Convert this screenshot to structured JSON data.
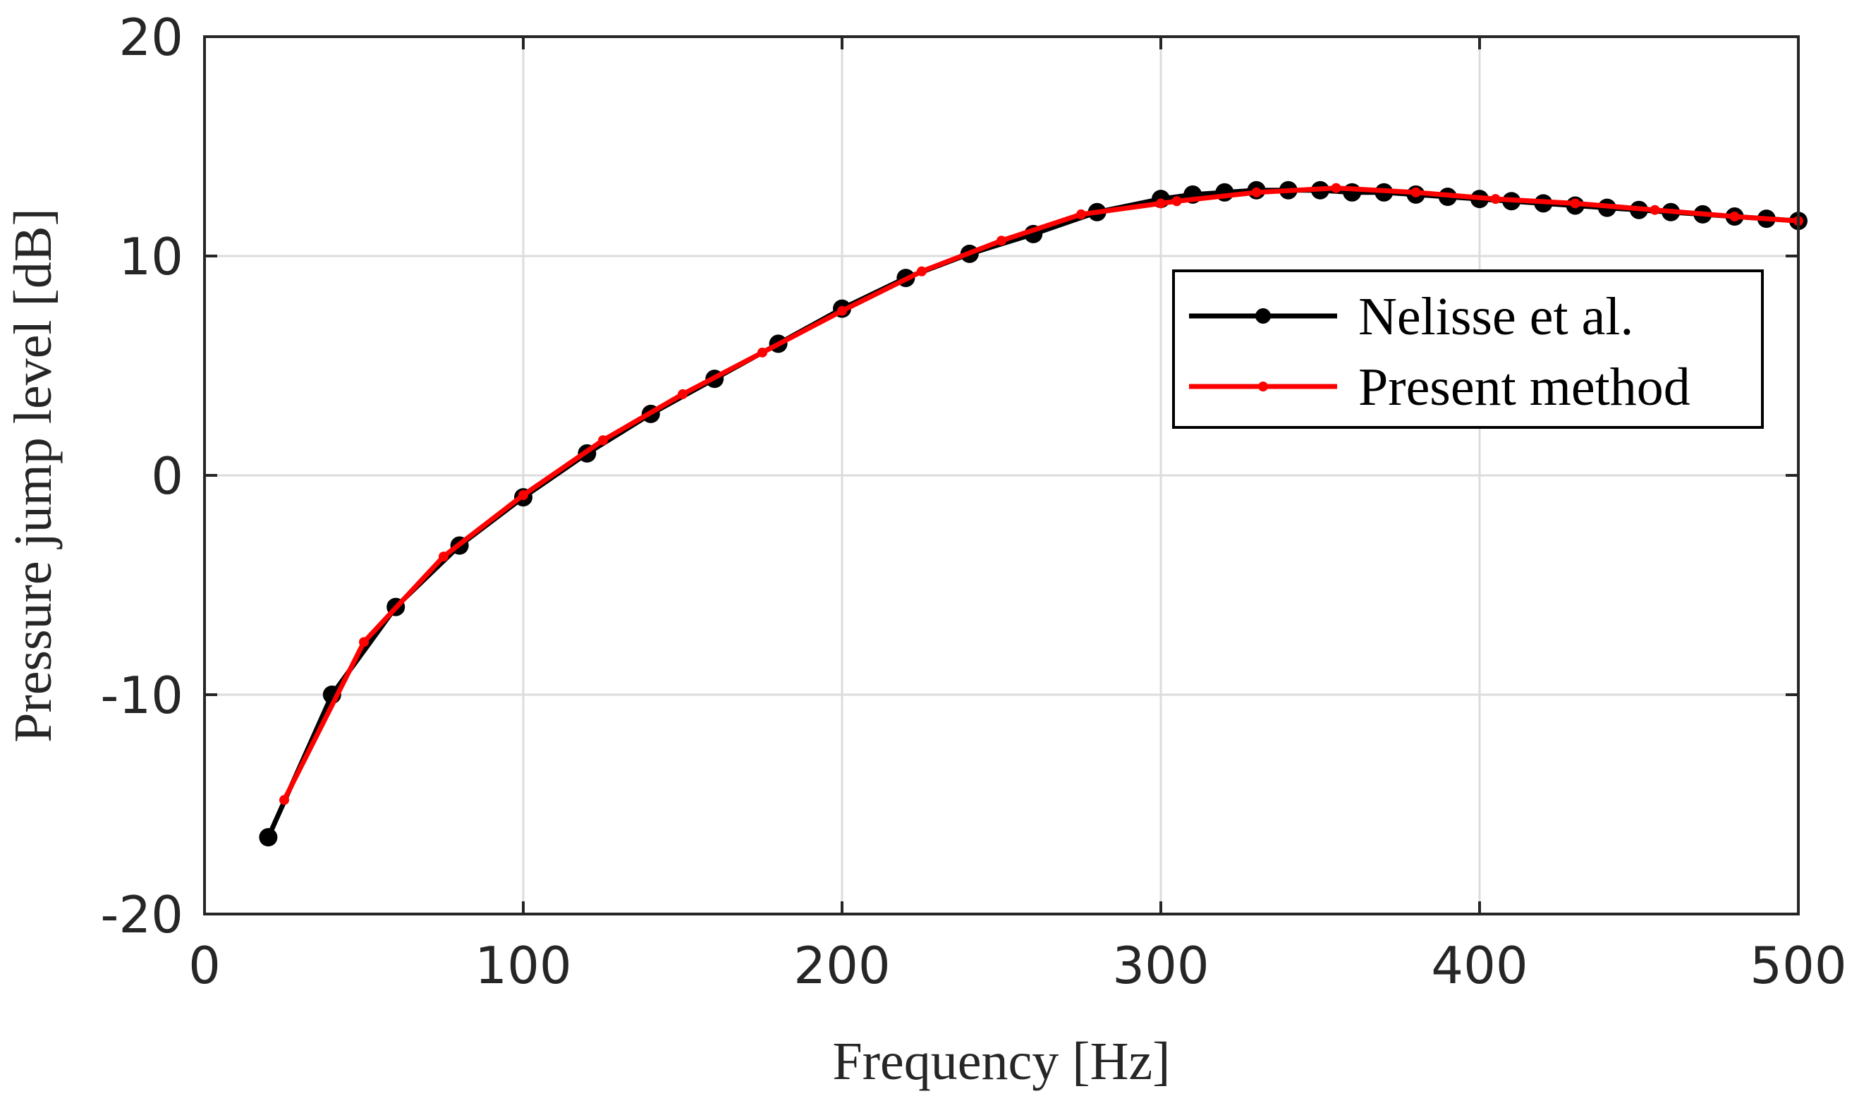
{
  "chart_data": {
    "type": "line",
    "title": "",
    "xlabel": "Frequency [Hz]",
    "ylabel": "Pressure jump level [dB]",
    "xlim": [
      0,
      500
    ],
    "ylim": [
      -20,
      20
    ],
    "xticks": [
      0,
      100,
      200,
      300,
      400,
      500
    ],
    "yticks": [
      -20,
      -10,
      0,
      10,
      20
    ],
    "xtick_labels": [
      "0",
      "100",
      "200",
      "300",
      "400",
      "500"
    ],
    "ytick_labels": [
      "-20",
      "-10",
      "0",
      "10",
      "20"
    ],
    "grid": true,
    "legend_position": "right",
    "series": [
      {
        "name": "Nelisse et al.",
        "color": "#000000",
        "marker": "circle",
        "x": [
          20,
          40,
          60,
          80,
          100,
          120,
          140,
          160,
          180,
          200,
          220,
          240,
          260,
          280,
          300,
          310,
          320,
          330,
          340,
          350,
          360,
          370,
          380,
          390,
          400,
          410,
          420,
          430,
          440,
          450,
          460,
          470,
          480,
          490,
          500
        ],
        "y": [
          -16.5,
          -10.0,
          -6.0,
          -3.2,
          -1.0,
          1.0,
          2.8,
          4.4,
          6.0,
          7.6,
          9.0,
          10.1,
          11.0,
          12.0,
          12.6,
          12.8,
          12.9,
          13.0,
          13.0,
          13.0,
          12.9,
          12.9,
          12.8,
          12.7,
          12.6,
          12.5,
          12.4,
          12.3,
          12.2,
          12.1,
          12.0,
          11.9,
          11.8,
          11.7,
          11.6
        ]
      },
      {
        "name": "Present method",
        "color": "#ff0000",
        "marker": "dot",
        "x": [
          25,
          50,
          75,
          100,
          125,
          150,
          175,
          200,
          225,
          250,
          275,
          300,
          305,
          330,
          355,
          380,
          405,
          430,
          455,
          480,
          500
        ],
        "y": [
          -14.8,
          -7.6,
          -3.7,
          -0.9,
          1.6,
          3.7,
          5.6,
          7.5,
          9.3,
          10.7,
          11.9,
          12.4,
          12.5,
          12.9,
          13.1,
          12.9,
          12.6,
          12.4,
          12.1,
          11.8,
          11.6
        ]
      }
    ]
  }
}
